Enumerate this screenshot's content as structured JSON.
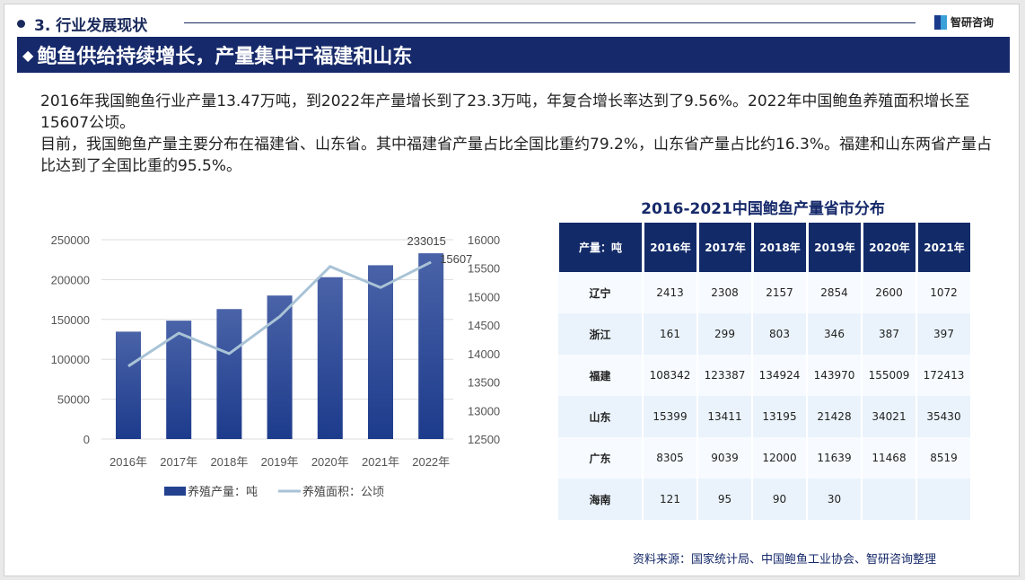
{
  "header": {
    "section": "3. 行业发展现状",
    "logo": "智研咨询",
    "banner": "鲍鱼供给持续增长，产量集中于福建和山东"
  },
  "paragraphs": [
    "2016年我国鲍鱼行业产量13.47万吨，到2022年产量增长到了23.3万吨，年复合增长率达到了9.56%。2022年中国鲍鱼养殖面积增长至15607公顷。",
    "目前，我国鲍鱼产量主要分布在福建省、山东省。其中福建省产量占比全国比重约79.2%，山东省产量占比约16.3%。福建和山东两省产量占比达到了全国比重的95.5%。"
  ],
  "chart_data": {
    "type": "bar+line",
    "categories": [
      "2016年",
      "2017年",
      "2018年",
      "2019年",
      "2020年",
      "2021年",
      "2022年"
    ],
    "series": [
      {
        "name": "养殖产量：吨",
        "type": "bar",
        "axis": "left",
        "values": [
          134700,
          148500,
          163000,
          180000,
          203000,
          218000,
          233015
        ],
        "color": "#23418f"
      },
      {
        "name": "养殖面积：公顷",
        "type": "line",
        "axis": "right",
        "values": [
          13780,
          14360,
          14000,
          14650,
          15530,
          15160,
          15607
        ],
        "color": "#a9c3d6"
      }
    ],
    "left_ticks": [
      "0",
      "50000",
      "100000",
      "150000",
      "200000",
      "250000"
    ],
    "right_ticks": [
      "12500",
      "13000",
      "13500",
      "14000",
      "14500",
      "15000",
      "15500",
      "16000"
    ],
    "ylim_left": [
      0,
      250000
    ],
    "ylim_right": [
      12500,
      16000
    ],
    "labels": {
      "bar": "233015",
      "line": "15607"
    },
    "grid": true,
    "legend": "bottom"
  },
  "table": {
    "title": "2016-2021中国鲍鱼产量省市分布",
    "headers": [
      "产量：吨",
      "2016年",
      "2017年",
      "2018年",
      "2019年",
      "2020年",
      "2021年"
    ],
    "rows": [
      [
        "辽宁",
        "2413",
        "2308",
        "2157",
        "2854",
        "2600",
        "1072"
      ],
      [
        "浙江",
        "161",
        "299",
        "803",
        "346",
        "387",
        "397"
      ],
      [
        "福建",
        "108342",
        "123387",
        "134924",
        "143970",
        "155009",
        "172413"
      ],
      [
        "山东",
        "15399",
        "13411",
        "13195",
        "21428",
        "34021",
        "35430"
      ],
      [
        "广东",
        "8305",
        "9039",
        "12000",
        "11639",
        "11468",
        "8519"
      ],
      [
        "海南",
        "121",
        "95",
        "90",
        "30",
        "",
        ""
      ]
    ]
  },
  "source": "资料来源：国家统计局、中国鲍鱼工业协会、智研咨询整理"
}
